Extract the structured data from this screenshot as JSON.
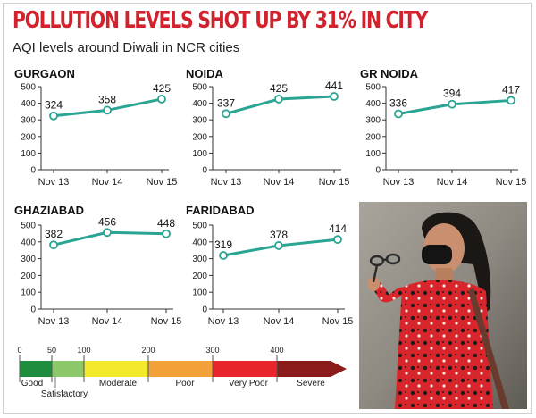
{
  "headline": "POLLUTION LEVELS SHOT UP BY 31% IN CITY",
  "subhead": "AQI levels around Diwali in NCR cities",
  "colors": {
    "headline": "#d2222d",
    "line": "#2aa593",
    "good": "#1e8e3e",
    "satisfactory": "#8cc86a",
    "moderate": "#f2ea2a",
    "poor": "#f3a23a",
    "very_poor": "#e8262b",
    "severe": "#8b1a1a"
  },
  "chart_data": [
    {
      "type": "line",
      "title": "GURGAON",
      "categories": [
        "Nov 13",
        "Nov 14",
        "Nov 15"
      ],
      "values": [
        324,
        358,
        425
      ],
      "ylim": [
        0,
        500
      ],
      "yticks": [
        0,
        100,
        200,
        300,
        400,
        500
      ]
    },
    {
      "type": "line",
      "title": "NOIDA",
      "categories": [
        "Nov 13",
        "Nov 14",
        "Nov 15"
      ],
      "values": [
        337,
        425,
        441
      ],
      "ylim": [
        0,
        500
      ],
      "yticks": [
        0,
        100,
        200,
        300,
        400,
        500
      ]
    },
    {
      "type": "line",
      "title": "GR NOIDA",
      "categories": [
        "Nov 13",
        "Nov 14",
        "Nov 15"
      ],
      "values": [
        336,
        394,
        417
      ],
      "ylim": [
        0,
        500
      ],
      "yticks": [
        0,
        100,
        200,
        300,
        400,
        500
      ]
    },
    {
      "type": "line",
      "title": "GHAZIABAD",
      "categories": [
        "Nov 13",
        "Nov 14",
        "Nov 15"
      ],
      "values": [
        382,
        456,
        448
      ],
      "ylim": [
        0,
        500
      ],
      "yticks": [
        0,
        100,
        200,
        300,
        400,
        500
      ]
    },
    {
      "type": "line",
      "title": "FARIDABAD",
      "categories": [
        "Nov 13",
        "Nov 14",
        "Nov 15"
      ],
      "values": [
        319,
        378,
        414
      ],
      "ylim": [
        0,
        500
      ],
      "yticks": [
        0,
        100,
        200,
        300,
        400,
        500
      ]
    }
  ],
  "aqi_scale": {
    "ticks": [
      "0",
      "50",
      "100",
      "200",
      "300",
      "400"
    ],
    "bands": [
      {
        "label": "Good",
        "from": 0,
        "to": 50,
        "color": "#1e8e3e"
      },
      {
        "label": "Satisfactory",
        "from": 50,
        "to": 100,
        "color": "#8cc86a"
      },
      {
        "label": "Moderate",
        "from": 100,
        "to": 200,
        "color": "#f2ea2a"
      },
      {
        "label": "Poor",
        "from": 200,
        "to": 300,
        "color": "#f3a23a"
      },
      {
        "label": "Very Poor",
        "from": 300,
        "to": 400,
        "color": "#e8262b"
      },
      {
        "label": "Severe",
        "from": 400,
        "to": 500,
        "color": "#8b1a1a"
      }
    ]
  }
}
